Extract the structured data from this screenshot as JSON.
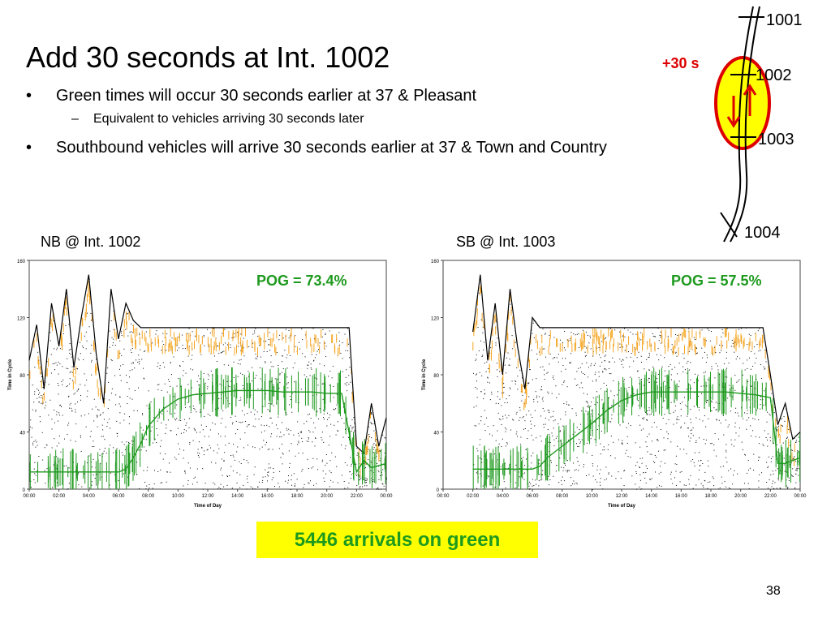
{
  "slide": {
    "title": "Add 30 seconds at Int. 1002",
    "bullets": [
      {
        "text": "Green times will occur 30 seconds earlier at 37 & Pleasant",
        "sub": "Equivalent to vehicles arriving 30 seconds later"
      },
      {
        "text": "Southbound vehicles will arrive 30 seconds earlier at 37 & Town and Country"
      }
    ],
    "bullet_mark": "•",
    "sub_mark": "–",
    "summary": "5446 arrivals on green",
    "page_number": "38"
  },
  "map": {
    "offset_label": "+30 s",
    "intersections": [
      "1001",
      "1002",
      "1003",
      "1004"
    ],
    "colors": {
      "highlight_fill": "#ffff00",
      "highlight_stroke": "#dd0000",
      "arrow": "#dd0000",
      "offset_text": "#dd0000"
    }
  },
  "chart_data": [
    {
      "type": "scatter",
      "panel_label": "NB @ Int. 1002",
      "annotation": "POG = 73.4%",
      "xlabel": "Time of Day",
      "ylabel": "Time in Cycle",
      "x_ticks": [
        "00:00",
        "02:00",
        "04:00",
        "06:00",
        "08:00",
        "10:00",
        "12:00",
        "14:00",
        "16:00",
        "18:00",
        "20:00",
        "22:00",
        "00:00"
      ],
      "y_ticks": [
        0,
        40,
        80,
        120,
        160
      ],
      "xlim": [
        0,
        24
      ],
      "ylim": [
        0,
        160
      ],
      "grid": false,
      "series": [
        {
          "kind": "cycle-length",
          "x": [
            0,
            0.5,
            1,
            1.5,
            2,
            2.5,
            3,
            3.5,
            4,
            4.5,
            5,
            5.5,
            6,
            6.5,
            7,
            7.5,
            8,
            10,
            12,
            14,
            16,
            18,
            20,
            21.5,
            22,
            22.5,
            23,
            23.5,
            24
          ],
          "y": [
            90,
            115,
            70,
            130,
            100,
            140,
            85,
            120,
            150,
            95,
            60,
            140,
            105,
            130,
            118,
            113,
            113,
            113,
            113,
            113,
            113,
            113,
            113,
            113,
            30,
            25,
            60,
            30,
            50
          ]
        },
        {
          "kind": "green-end",
          "x": [
            0,
            1,
            2,
            3,
            4,
            5,
            6,
            6.5,
            7,
            7.5,
            8,
            9,
            10,
            11,
            12,
            13,
            14,
            15,
            16,
            17,
            18,
            19,
            20,
            21,
            22,
            22.5,
            23,
            24
          ],
          "y": [
            12,
            12,
            12,
            12,
            12,
            12,
            12,
            14,
            22,
            32,
            44,
            56,
            63,
            66,
            67,
            68,
            69,
            69,
            69,
            68,
            68,
            68,
            67,
            67,
            12,
            20,
            15,
            18
          ]
        }
      ]
    },
    {
      "type": "scatter",
      "panel_label": "SB @ Int. 1003",
      "annotation": "POG = 57.5%",
      "xlabel": "Time of Day",
      "ylabel": "Time in Cycle",
      "x_ticks": [
        "00:00",
        "02:00",
        "04:00",
        "06:00",
        "08:00",
        "10:00",
        "12:00",
        "14:00",
        "16:00",
        "18:00",
        "20:00",
        "22:00",
        "00:00"
      ],
      "y_ticks": [
        0,
        40,
        80,
        120,
        160
      ],
      "xlim": [
        0,
        24
      ],
      "ylim": [
        0,
        160
      ],
      "grid": false,
      "series": [
        {
          "kind": "cycle-length",
          "x": [
            2,
            2.5,
            3,
            3.5,
            4,
            4.5,
            5,
            5.5,
            6,
            6.5,
            7,
            7.5,
            8,
            10,
            12,
            14,
            16,
            18,
            20,
            21.5,
            22,
            22.5,
            23,
            23.5,
            24
          ],
          "y": [
            110,
            150,
            90,
            130,
            80,
            140,
            100,
            70,
            120,
            113,
            113,
            113,
            113,
            113,
            113,
            113,
            113,
            113,
            113,
            113,
            80,
            45,
            60,
            35,
            40
          ]
        },
        {
          "kind": "green-end",
          "x": [
            2,
            3,
            4,
            5,
            6,
            6.5,
            7,
            8,
            9,
            10,
            11,
            12,
            13,
            14,
            15,
            16,
            17,
            18,
            19,
            20,
            21,
            22,
            22.5,
            23,
            24
          ],
          "y": [
            14,
            14,
            14,
            14,
            14,
            16,
            22,
            30,
            38,
            46,
            55,
            62,
            66,
            68,
            68,
            68,
            68,
            68,
            68,
            67,
            66,
            64,
            18,
            18,
            22
          ]
        }
      ]
    }
  ]
}
